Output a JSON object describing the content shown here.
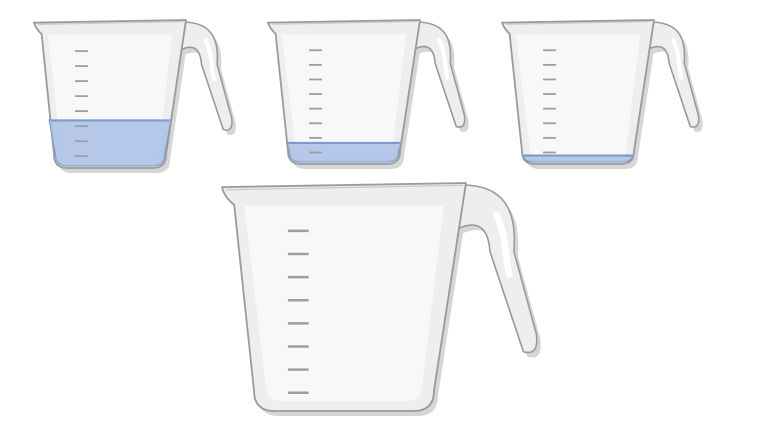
{
  "scene": {
    "background_color": "#ffffff",
    "outline_color": "#9a9a9a",
    "cup_fill_color": "#eeeeee",
    "cup_highlight_color": "#f8f8f8",
    "tick_color": "#9e9e9e",
    "shadow_color": "#d6d6d6",
    "liquid_color": "#a9bfe6",
    "liquid_edge_color": "#7f97c9"
  },
  "cups": [
    {
      "name": "cup-1",
      "size": "small",
      "tick_count": 8,
      "liquid_level": 0.32
    },
    {
      "name": "cup-2",
      "size": "small",
      "tick_count": 8,
      "liquid_level": 0.14
    },
    {
      "name": "cup-3",
      "size": "small",
      "tick_count": 8,
      "liquid_level": 0.05
    },
    {
      "name": "cup-4",
      "size": "large",
      "tick_count": 8,
      "liquid_level": 0
    }
  ]
}
